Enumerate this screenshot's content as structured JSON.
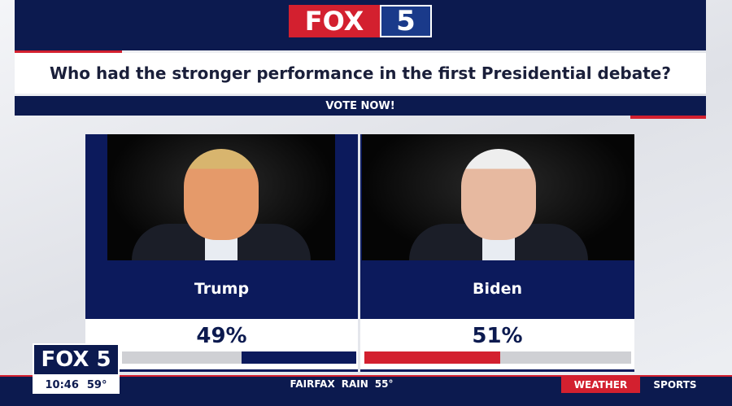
{
  "header": {
    "logo_text": "FOX",
    "logo_number": "5"
  },
  "poll": {
    "question": "Who had the stronger performance in the first Presidential debate?",
    "cta": "VOTE NOW!",
    "options": [
      {
        "name": "Trump",
        "value": 49,
        "value_label": "49%",
        "color": "#0c1a5c"
      },
      {
        "name": "Biden",
        "value": 51,
        "value_label": "51%",
        "color": "#d3202f"
      }
    ]
  },
  "ticker": {
    "channel": "FOX 5",
    "time": "10:46",
    "temperature": "59°",
    "location": "FAIRFAX",
    "condition": "RAIN",
    "forecast_temp": "55°",
    "tabs": [
      "WEATHER",
      "SPORTS"
    ]
  }
}
